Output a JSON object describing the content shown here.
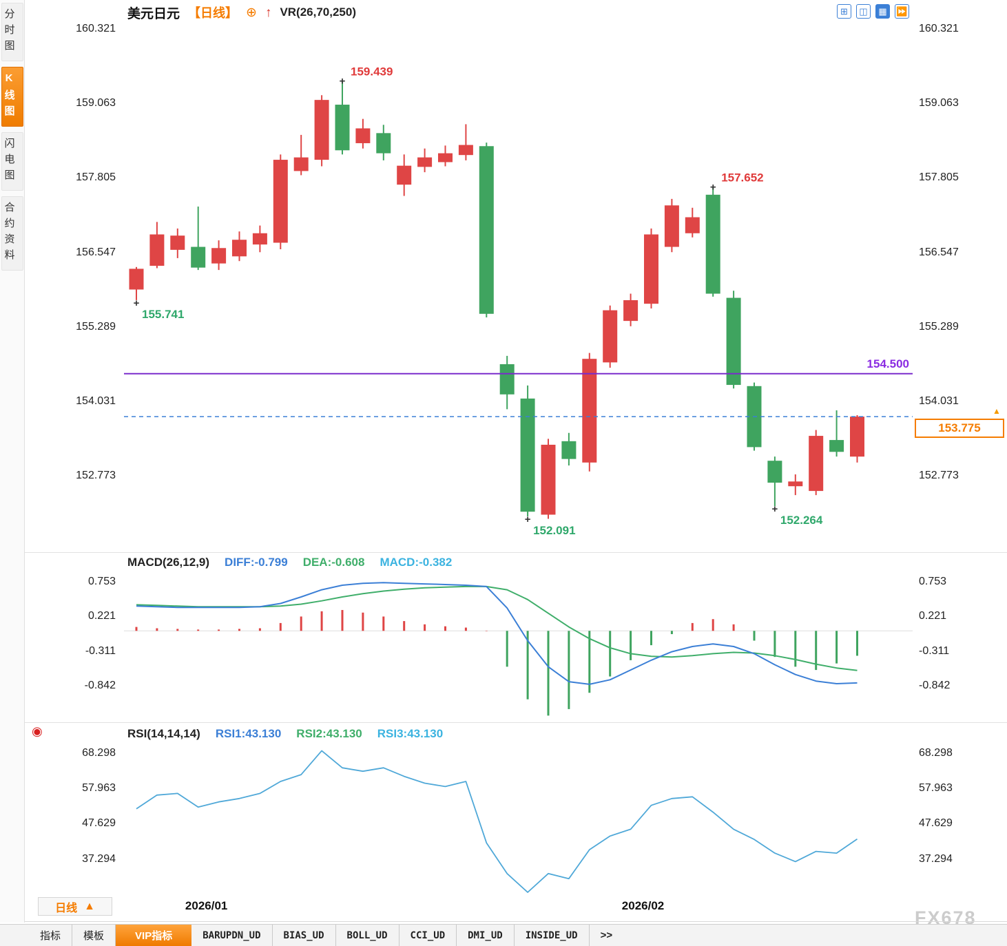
{
  "sidebar": {
    "items": [
      {
        "label": "分时图",
        "active": false
      },
      {
        "label": "K线图",
        "active": true
      },
      {
        "label": "闪电图",
        "active": false
      },
      {
        "label": "合约资料",
        "active": false
      }
    ]
  },
  "header": {
    "symbol": "美元日元",
    "period": "【日线】",
    "add_icon": "⊕",
    "arrow_icon": "↑",
    "overlay_indicator": "VR(26,70,250)"
  },
  "toolbar": {
    "icons": [
      {
        "name": "layout-grid-icon",
        "glyph": "⊞",
        "active": false
      },
      {
        "name": "kline-view-icon",
        "glyph": "◫",
        "active": false
      },
      {
        "name": "indicator-panel-icon",
        "glyph": "▦",
        "active": true
      },
      {
        "name": "scroll-right-icon",
        "glyph": "⏩",
        "active": false
      }
    ]
  },
  "icons": {
    "up_triangle": "▲",
    "target": "◉"
  },
  "footer": {
    "period_label": "日线",
    "period_arrow": "▲",
    "tabs": [
      {
        "label": "指标",
        "active": false
      },
      {
        "label": "模板",
        "active": false
      },
      {
        "label": "VIP指标",
        "active": true
      },
      {
        "label": "BARUPDN_UD",
        "active": false
      },
      {
        "label": "BIAS_UD",
        "active": false
      },
      {
        "label": "BOLL_UD",
        "active": false
      },
      {
        "label": "CCI_UD",
        "active": false
      },
      {
        "label": "DMI_UD",
        "active": false
      },
      {
        "label": "INSIDE_UD",
        "active": false
      },
      {
        "label": ">>",
        "active": false
      }
    ]
  },
  "watermark": "FX678",
  "chart_data": [
    {
      "type": "candlestick",
      "title": "美元日元【日线】",
      "ylim": [
        151.51,
        160.4
      ],
      "y_ticks": [
        160.321,
        159.063,
        157.805,
        156.547,
        155.289,
        154.031,
        152.773
      ],
      "x_ticks": [
        {
          "label": "2026/01",
          "index": 3.4
        },
        {
          "label": "2026/02",
          "index": 24.6
        }
      ],
      "colors": {
        "up": "#df4545",
        "down": "#3fa45f",
        "annotation_high": "#e03a3a",
        "annotation_low": "#2fa86b"
      },
      "candles": [
        [
          155.92,
          156.3,
          155.741,
          156.27
        ],
        [
          156.32,
          157.06,
          156.28,
          156.85
        ],
        [
          156.59,
          156.95,
          156.45,
          156.83
        ],
        [
          156.64,
          157.32,
          156.25,
          156.29
        ],
        [
          156.36,
          156.75,
          156.25,
          156.62
        ],
        [
          156.48,
          156.9,
          156.4,
          156.76
        ],
        [
          156.68,
          157.0,
          156.55,
          156.87
        ],
        [
          156.71,
          158.2,
          156.6,
          158.11
        ],
        [
          157.92,
          158.53,
          157.85,
          158.15
        ],
        [
          158.11,
          159.2,
          158.0,
          159.12
        ],
        [
          159.04,
          159.439,
          158.2,
          158.27
        ],
        [
          158.39,
          158.8,
          158.3,
          158.64
        ],
        [
          158.56,
          158.7,
          158.1,
          158.22
        ],
        [
          157.69,
          158.2,
          157.5,
          158.01
        ],
        [
          157.99,
          158.3,
          157.9,
          158.15
        ],
        [
          158.07,
          158.35,
          158.0,
          158.22
        ],
        [
          158.19,
          158.71,
          158.1,
          158.36
        ],
        [
          158.34,
          158.4,
          155.45,
          155.51
        ],
        [
          154.66,
          154.8,
          153.9,
          154.15
        ],
        [
          154.08,
          154.3,
          152.091,
          152.17
        ],
        [
          152.12,
          153.4,
          152.05,
          153.3
        ],
        [
          153.36,
          153.5,
          152.95,
          153.06
        ],
        [
          153.0,
          154.85,
          152.85,
          154.75
        ],
        [
          154.69,
          155.65,
          154.6,
          155.57
        ],
        [
          155.39,
          155.85,
          155.3,
          155.74
        ],
        [
          155.68,
          156.95,
          155.6,
          156.85
        ],
        [
          156.64,
          157.45,
          156.55,
          157.34
        ],
        [
          156.87,
          157.3,
          156.8,
          157.14
        ],
        [
          157.52,
          157.652,
          155.8,
          155.85
        ],
        [
          155.78,
          155.9,
          154.25,
          154.31
        ],
        [
          154.29,
          154.35,
          153.2,
          153.26
        ],
        [
          153.03,
          153.1,
          152.264,
          152.66
        ],
        [
          152.6,
          152.8,
          152.45,
          152.68
        ],
        [
          152.52,
          153.55,
          152.45,
          153.45
        ],
        [
          153.38,
          153.88,
          153.1,
          153.18
        ],
        [
          153.1,
          153.8,
          153.0,
          153.775
        ]
      ],
      "hlines": [
        {
          "value": 154.5,
          "label": "154.500",
          "color": "#7a2ccc",
          "dash": false,
          "label_style": "inline"
        },
        {
          "value": 153.775,
          "label": "153.775",
          "color": "#3b7fd6",
          "dash": true,
          "label_style": "tag"
        }
      ],
      "annotations": [
        {
          "index": 0,
          "value": 155.741,
          "text": "155.741",
          "side": "low"
        },
        {
          "index": 10,
          "value": 159.439,
          "text": "159.439",
          "side": "high"
        },
        {
          "index": 19,
          "value": 152.091,
          "text": "152.091",
          "side": "low"
        },
        {
          "index": 28,
          "value": 157.652,
          "text": "157.652",
          "side": "high"
        },
        {
          "index": 31,
          "value": 152.264,
          "text": "152.264",
          "side": "low"
        }
      ]
    },
    {
      "type": "macd",
      "title": "MACD(26,12,9)",
      "labels": {
        "diff": "DIFF:-0.799",
        "dea": "DEA:-0.608",
        "macd": "MACD:-0.382"
      },
      "ylim": [
        -1.37,
        0.89
      ],
      "y_ticks": [
        0.753,
        0.221,
        -0.311,
        -0.842
      ],
      "colors": {
        "diff": "#3b7fd6",
        "dea": "#3fae6a",
        "hist_pos": "#df4545",
        "hist_neg": "#3fa45f"
      },
      "diff": [
        0.38,
        0.37,
        0.36,
        0.36,
        0.36,
        0.36,
        0.37,
        0.42,
        0.52,
        0.63,
        0.7,
        0.73,
        0.74,
        0.73,
        0.72,
        0.71,
        0.7,
        0.68,
        0.35,
        -0.15,
        -0.55,
        -0.78,
        -0.82,
        -0.75,
        -0.6,
        -0.45,
        -0.32,
        -0.24,
        -0.2,
        -0.24,
        -0.35,
        -0.52,
        -0.67,
        -0.77,
        -0.81,
        -0.799
      ],
      "dea": [
        0.4,
        0.39,
        0.38,
        0.37,
        0.37,
        0.37,
        0.37,
        0.38,
        0.41,
        0.46,
        0.52,
        0.57,
        0.61,
        0.64,
        0.66,
        0.67,
        0.68,
        0.68,
        0.63,
        0.48,
        0.27,
        0.06,
        -0.12,
        -0.26,
        -0.35,
        -0.39,
        -0.4,
        -0.38,
        -0.35,
        -0.33,
        -0.34,
        -0.38,
        -0.44,
        -0.51,
        -0.57,
        -0.608
      ],
      "hist": [
        0.06,
        0.04,
        0.03,
        0.02,
        0.02,
        0.03,
        0.04,
        0.12,
        0.22,
        0.3,
        0.32,
        0.28,
        0.22,
        0.15,
        0.1,
        0.07,
        0.05,
        0.0,
        -0.55,
        -1.05,
        -1.3,
        -1.2,
        -0.95,
        -0.7,
        -0.45,
        -0.22,
        -0.05,
        0.12,
        0.18,
        0.1,
        -0.15,
        -0.4,
        -0.55,
        -0.6,
        -0.5,
        -0.382
      ]
    },
    {
      "type": "line",
      "title": "RSI(14,14,14)",
      "labels": [
        "RSI1:43.130",
        "RSI2:43.130",
        "RSI3:43.130"
      ],
      "ylim": [
        26.7,
        70.7
      ],
      "y_ticks": [
        68.298,
        57.963,
        47.629,
        37.294
      ],
      "color": "#4fa8d8",
      "values": [
        52,
        56,
        56.5,
        52.5,
        54,
        55,
        56.5,
        60,
        62,
        69,
        64,
        63,
        64,
        61.5,
        59.5,
        58.5,
        60,
        42,
        33,
        27.5,
        33,
        31.5,
        40,
        44,
        46,
        53,
        55,
        55.5,
        51,
        46,
        43,
        39,
        36.5,
        39.5,
        39,
        43.13
      ]
    }
  ]
}
